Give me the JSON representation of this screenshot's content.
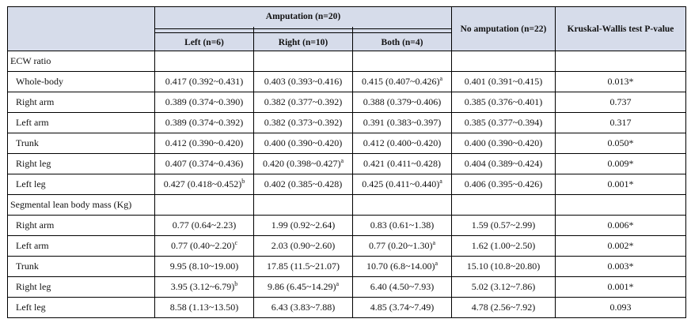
{
  "headers": {
    "group_amputation": "Amputation (n=20)",
    "left": "Left (n=6)",
    "right": "Right (n=10)",
    "both": "Both (n=4)",
    "no_amputation": "No amputation (n=22)",
    "kruskal": "Kruskal-Wallis test P-value"
  },
  "sections": {
    "ecw": "ECW ratio",
    "lean": "Segmental lean body mass (Kg)"
  },
  "ecw_rows": [
    {
      "label": "Whole-body",
      "left": "0.417 (0.392~0.431)",
      "left_sup": "",
      "right": "0.403 (0.393~0.416)",
      "right_sup": "",
      "both": "0.415 (0.407~0.426)",
      "both_sup": "a",
      "none": "0.401 (0.391~0.415)",
      "p": "0.013*"
    },
    {
      "label": "Right arm",
      "left": "0.389 (0.374~0.390)",
      "left_sup": "",
      "right": "0.382 (0.377~0.392)",
      "right_sup": "",
      "both": "0.388 (0.379~0.406)",
      "both_sup": "",
      "none": "0.385 (0.376~0.401)",
      "p": "0.737"
    },
    {
      "label": "Left arm",
      "left": "0.389 (0.374~0.392)",
      "left_sup": "",
      "right": "0.382 (0.373~0.392)",
      "right_sup": "",
      "both": "0.391 (0.383~0.397)",
      "both_sup": "",
      "none": "0.385 (0.377~0.394)",
      "p": "0.317"
    },
    {
      "label": "Trunk",
      "left": "0.412 (0.390~0.420)",
      "left_sup": "",
      "right": "0.400 (0.390~0.420)",
      "right_sup": "",
      "both": "0.412 (0.400~0.420)",
      "both_sup": "",
      "none": "0.400 (0.390~0.420)",
      "p": "0.050*"
    },
    {
      "label": "Right leg",
      "left": "0.407 (0.374~0.436)",
      "left_sup": "",
      "right": "0.420 (0.398~0.427)",
      "right_sup": "a",
      "both": "0.421 (0.411~0.428)",
      "both_sup": "",
      "none": "0.404 (0.389~0.424)",
      "p": "0.009*"
    },
    {
      "label": "Left leg",
      "left": "0.427 (0.418~0.452)",
      "left_sup": "b",
      "right": "0.402 (0.385~0.428)",
      "right_sup": "",
      "both": "0.425 (0.411~0.440)",
      "both_sup": "a",
      "none": "0.406 (0.395~0.426)",
      "p": "0.001*"
    }
  ],
  "lean_rows": [
    {
      "label": "Right arm",
      "left": "0.77 (0.64~2.23)",
      "left_sup": "",
      "right": "1.99 (0.92~2.64)",
      "right_sup": "",
      "both": "0.83 (0.61~1.38)",
      "both_sup": "",
      "none": "1.59 (0.57~2.99)",
      "p": "0.006*"
    },
    {
      "label": "Left arm",
      "left": "0.77 (0.40~2.20)",
      "left_sup": "c",
      "right": "2.03 (0.90~2.60)",
      "right_sup": "",
      "both": "0.77 (0.20~1.30)",
      "both_sup": "a",
      "none": "1.62 (1.00~2.50)",
      "p": "0.002*"
    },
    {
      "label": "Trunk",
      "left": "9.95 (8.10~19.00)",
      "left_sup": "",
      "right": "17.85 (11.5~21.07)",
      "right_sup": "",
      "both": "10.70 (6.8~14.00)",
      "both_sup": "a",
      "none": "15.10 (10.8~20.80)",
      "p": "0.003*"
    },
    {
      "label": "Right leg",
      "left": "3.95 (3.12~6.79)",
      "left_sup": "b",
      "right": "9.86 (6.45~14.29)",
      "right_sup": "a",
      "both": "6.40 (4.50~7.93)",
      "both_sup": "",
      "none": "5.02 (3.12~7.86)",
      "p": "0.001*"
    },
    {
      "label": "Left leg",
      "left": "8.58 (1.13~13.50)",
      "left_sup": "",
      "right": "6.43 (3.83~7.88)",
      "right_sup": "",
      "both": "4.85 (3.74~7.49)",
      "both_sup": "",
      "none": "4.78 (2.56~7.92)",
      "p": "0.093"
    }
  ]
}
